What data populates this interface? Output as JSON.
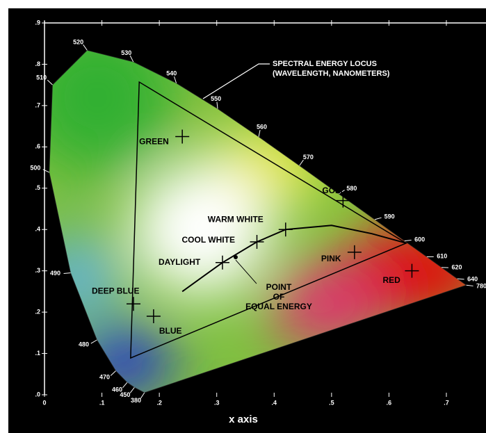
{
  "chart_data": {
    "type": "chromaticity",
    "x_label": "x axis",
    "xlim": [
      0,
      0.7
    ],
    "ylim": [
      0,
      0.9
    ],
    "xticks": [
      {
        "value": 0,
        "label": "0"
      },
      {
        "value": 0.1,
        "label": ".1"
      },
      {
        "value": 0.2,
        "label": ".2"
      },
      {
        "value": 0.3,
        "label": ".3"
      },
      {
        "value": 0.4,
        "label": ".4"
      },
      {
        "value": 0.5,
        "label": ".5"
      },
      {
        "value": 0.6,
        "label": ".6"
      },
      {
        "value": 0.7,
        "label": ".7"
      }
    ],
    "yticks": [
      {
        "value": 0,
        "label": ".0"
      },
      {
        "value": 0.1,
        "label": ".1"
      },
      {
        "value": 0.2,
        "label": ".2"
      },
      {
        "value": 0.3,
        "label": ".3"
      },
      {
        "value": 0.4,
        "label": ".4"
      },
      {
        "value": 0.5,
        "label": ".5"
      },
      {
        "value": 0.6,
        "label": ".6"
      },
      {
        "value": 0.7,
        "label": ".7"
      },
      {
        "value": 0.8,
        "label": ".8"
      },
      {
        "value": 0.9,
        "label": ".9"
      }
    ],
    "locus": {
      "wavelengths": [
        380,
        450,
        460,
        470,
        480,
        490,
        500,
        510,
        520,
        530,
        540,
        550,
        560,
        570,
        580,
        590,
        600,
        610,
        620,
        640,
        780
      ],
      "x": [
        0.1741,
        0.1566,
        0.144,
        0.1241,
        0.0913,
        0.0454,
        0.0082,
        0.0139,
        0.0743,
        0.1547,
        0.2296,
        0.3016,
        0.3731,
        0.4441,
        0.5125,
        0.5752,
        0.627,
        0.6658,
        0.6915,
        0.719,
        0.7347
      ],
      "y": [
        0.005,
        0.0177,
        0.0297,
        0.0578,
        0.1327,
        0.295,
        0.5384,
        0.7502,
        0.8338,
        0.8059,
        0.7543,
        0.6923,
        0.6245,
        0.5547,
        0.4866,
        0.4242,
        0.3725,
        0.334,
        0.3083,
        0.2809,
        0.2653
      ]
    },
    "gamut": {
      "x": [
        0.165,
        0.15,
        0.63
      ],
      "y": [
        0.757,
        0.089,
        0.367
      ]
    },
    "planckian": {
      "x": [
        0.24,
        0.28,
        0.31,
        0.37,
        0.42,
        0.5,
        0.57,
        0.63
      ],
      "y": [
        0.25,
        0.29,
        0.32,
        0.37,
        0.4,
        0.41,
        0.39,
        0.367
      ]
    },
    "colors": [
      {
        "name": "GREEN",
        "x": 0.24,
        "y": 0.625
      },
      {
        "name": "DEEP BLUE",
        "x": 0.155,
        "y": 0.22
      },
      {
        "name": "BLUE",
        "x": 0.19,
        "y": 0.19
      },
      {
        "name": "DAYLIGHT",
        "x": 0.31,
        "y": 0.32
      },
      {
        "name": "COOL WHITE",
        "x": 0.37,
        "y": 0.37
      },
      {
        "name": "WARM WHITE",
        "x": 0.42,
        "y": 0.4
      },
      {
        "name": "GOLD",
        "x": 0.52,
        "y": 0.47
      },
      {
        "name": "PINK",
        "x": 0.54,
        "y": 0.345
      },
      {
        "name": "RED",
        "x": 0.64,
        "y": 0.3
      }
    ],
    "equal_energy": {
      "x": 0.333,
      "y": 0.333,
      "label": [
        "POINT",
        "OF",
        "EQUAL ENERGY"
      ]
    },
    "locus_label": [
      "SPECTRAL ENERGY LOCUS",
      "(WAVELENGTH, NANOMETERS)"
    ]
  }
}
